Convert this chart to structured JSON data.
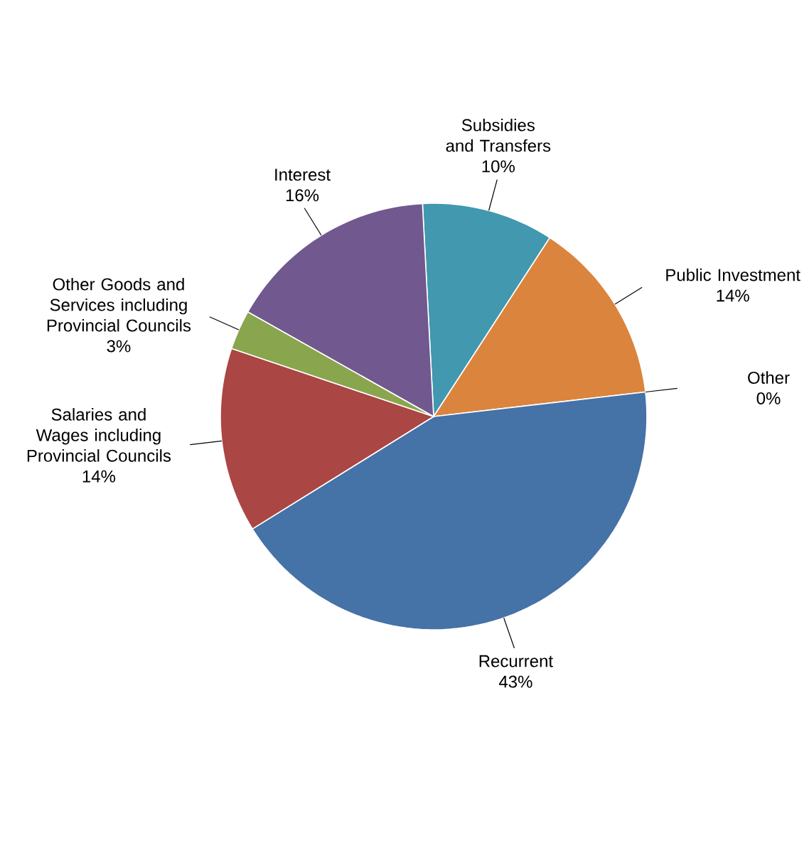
{
  "chart_data": {
    "type": "pie",
    "categories": [
      "Subsidies and Transfers",
      "Public Investment",
      "Other",
      "Recurrent",
      "Salaries and Wages including Provincial Councils",
      "Other Goods and Services including Provincial Councils",
      "Interest"
    ],
    "values": [
      10,
      14,
      0,
      43,
      14,
      3,
      16
    ],
    "value_labels": [
      "10%",
      "14%",
      "0%",
      "43%",
      "14%",
      "3%",
      "16%"
    ],
    "colors": [
      "#4198af",
      "#db843d",
      "#93a9cf",
      "#4572a7",
      "#aa4643",
      "#89a54e",
      "#71588f"
    ]
  }
}
